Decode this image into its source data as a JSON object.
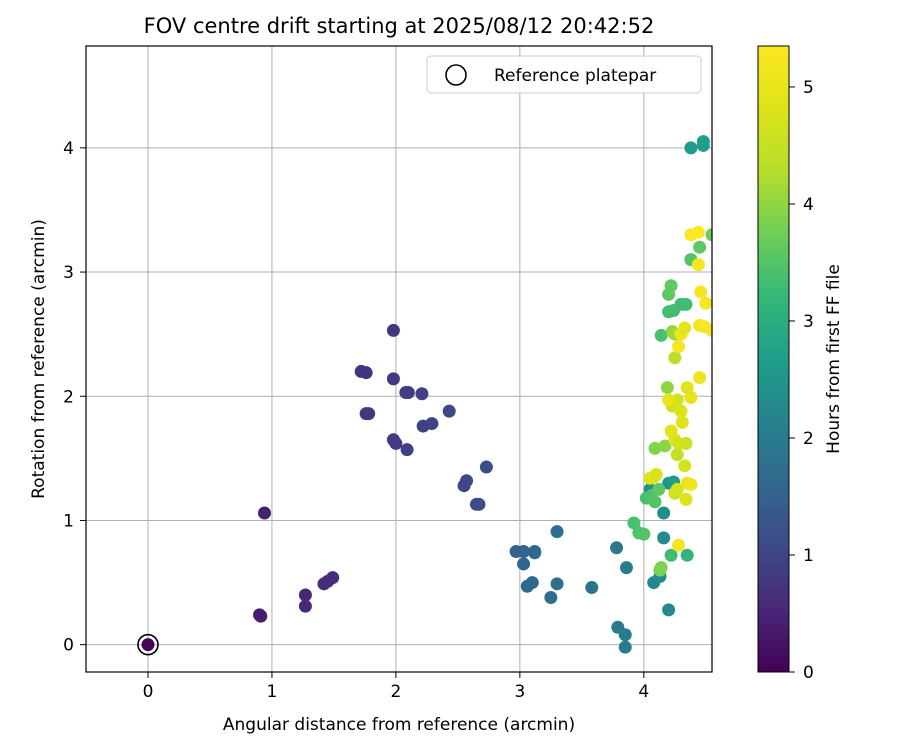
{
  "chart_data": {
    "type": "scatter",
    "title": "FOV centre drift starting at 2025/08/12 20:42:52",
    "xlabel": "Angular distance from reference (arcmin)",
    "ylabel": "Rotation from reference (arcmin)",
    "xlim": [
      -0.5,
      4.55
    ],
    "ylim": [
      -0.22,
      4.82
    ],
    "xticks": [
      0,
      1,
      2,
      3,
      4
    ],
    "yticks": [
      0,
      1,
      2,
      3,
      4
    ],
    "grid": true,
    "legend": {
      "placement": "top-right",
      "entries": [
        "Reference platepar"
      ]
    },
    "reference_point": {
      "x": 0,
      "y": 0,
      "label": "Reference platepar"
    },
    "colorbar": {
      "label": "Hours from first FF file",
      "range": [
        0,
        5.35
      ],
      "ticks": [
        0,
        1,
        2,
        3,
        4,
        5
      ],
      "colormap": "viridis"
    },
    "points": [
      {
        "x": 0.0,
        "y": 0.0,
        "c": 0.05
      },
      {
        "x": 0.9,
        "y": 0.24,
        "c": 0.4
      },
      {
        "x": 0.91,
        "y": 0.23,
        "c": 0.4
      },
      {
        "x": 0.94,
        "y": 1.06,
        "c": 0.45
      },
      {
        "x": 1.27,
        "y": 0.4,
        "c": 0.55
      },
      {
        "x": 1.27,
        "y": 0.31,
        "c": 0.55
      },
      {
        "x": 1.42,
        "y": 0.49,
        "c": 0.6
      },
      {
        "x": 1.45,
        "y": 0.51,
        "c": 0.6
      },
      {
        "x": 1.49,
        "y": 0.54,
        "c": 0.62
      },
      {
        "x": 1.72,
        "y": 2.2,
        "c": 0.75
      },
      {
        "x": 1.76,
        "y": 2.19,
        "c": 0.75
      },
      {
        "x": 1.76,
        "y": 1.86,
        "c": 0.78
      },
      {
        "x": 1.78,
        "y": 1.86,
        "c": 0.78
      },
      {
        "x": 1.98,
        "y": 2.53,
        "c": 0.8
      },
      {
        "x": 1.98,
        "y": 2.14,
        "c": 0.82
      },
      {
        "x": 1.98,
        "y": 1.65,
        "c": 0.85
      },
      {
        "x": 2.0,
        "y": 1.62,
        "c": 0.85
      },
      {
        "x": 2.08,
        "y": 2.03,
        "c": 0.88
      },
      {
        "x": 2.1,
        "y": 2.03,
        "c": 0.88
      },
      {
        "x": 2.09,
        "y": 1.57,
        "c": 0.9
      },
      {
        "x": 2.21,
        "y": 2.02,
        "c": 0.92
      },
      {
        "x": 2.22,
        "y": 1.76,
        "c": 0.95
      },
      {
        "x": 2.29,
        "y": 1.78,
        "c": 0.95
      },
      {
        "x": 2.43,
        "y": 1.88,
        "c": 1.0
      },
      {
        "x": 2.55,
        "y": 1.28,
        "c": 1.05
      },
      {
        "x": 2.57,
        "y": 1.32,
        "c": 1.05
      },
      {
        "x": 2.65,
        "y": 1.13,
        "c": 1.1
      },
      {
        "x": 2.67,
        "y": 1.13,
        "c": 1.1
      },
      {
        "x": 2.73,
        "y": 1.43,
        "c": 1.15
      },
      {
        "x": 2.97,
        "y": 0.75,
        "c": 1.5
      },
      {
        "x": 3.03,
        "y": 0.75,
        "c": 1.5
      },
      {
        "x": 3.03,
        "y": 0.65,
        "c": 1.55
      },
      {
        "x": 3.06,
        "y": 0.47,
        "c": 1.6
      },
      {
        "x": 3.1,
        "y": 0.5,
        "c": 1.6
      },
      {
        "x": 3.12,
        "y": 0.75,
        "c": 1.6
      },
      {
        "x": 3.12,
        "y": 0.74,
        "c": 1.6
      },
      {
        "x": 3.25,
        "y": 0.38,
        "c": 1.7
      },
      {
        "x": 3.3,
        "y": 0.49,
        "c": 1.75
      },
      {
        "x": 3.3,
        "y": 0.91,
        "c": 1.75
      },
      {
        "x": 3.58,
        "y": 0.46,
        "c": 1.85
      },
      {
        "x": 3.78,
        "y": 0.78,
        "c": 1.95
      },
      {
        "x": 3.79,
        "y": 0.14,
        "c": 1.95
      },
      {
        "x": 3.85,
        "y": 0.08,
        "c": 2.0
      },
      {
        "x": 3.85,
        "y": -0.02,
        "c": 2.0
      },
      {
        "x": 3.86,
        "y": 0.62,
        "c": 2.0
      },
      {
        "x": 4.08,
        "y": 0.5,
        "c": 2.2
      },
      {
        "x": 4.13,
        "y": 0.55,
        "c": 2.3
      },
      {
        "x": 4.16,
        "y": 0.86,
        "c": 2.3
      },
      {
        "x": 4.2,
        "y": 0.28,
        "c": 2.3
      },
      {
        "x": 4.16,
        "y": 1.06,
        "c": 2.35
      },
      {
        "x": 4.05,
        "y": 1.25,
        "c": 2.4
      },
      {
        "x": 4.2,
        "y": 1.3,
        "c": 2.5
      },
      {
        "x": 4.24,
        "y": 1.31,
        "c": 2.6
      },
      {
        "x": 4.35,
        "y": 0.72,
        "c": 3.15
      },
      {
        "x": 4.22,
        "y": 0.72,
        "c": 3.3
      },
      {
        "x": 3.92,
        "y": 0.98,
        "c": 3.4
      },
      {
        "x": 3.96,
        "y": 0.9,
        "c": 3.45
      },
      {
        "x": 4.0,
        "y": 0.89,
        "c": 3.5
      },
      {
        "x": 4.02,
        "y": 1.18,
        "c": 3.4
      },
      {
        "x": 4.06,
        "y": 1.2,
        "c": 3.45
      },
      {
        "x": 4.09,
        "y": 1.15,
        "c": 3.5
      },
      {
        "x": 4.12,
        "y": 1.25,
        "c": 3.6
      },
      {
        "x": 4.14,
        "y": 0.62,
        "c": 3.8
      },
      {
        "x": 4.13,
        "y": 0.6,
        "c": 3.85
      },
      {
        "x": 4.09,
        "y": 1.58,
        "c": 3.9
      },
      {
        "x": 4.17,
        "y": 1.6,
        "c": 3.95
      },
      {
        "x": 4.14,
        "y": 2.49,
        "c": 3.4
      },
      {
        "x": 4.2,
        "y": 2.68,
        "c": 3.35
      },
      {
        "x": 4.24,
        "y": 2.69,
        "c": 3.35
      },
      {
        "x": 4.3,
        "y": 2.74,
        "c": 3.3
      },
      {
        "x": 4.34,
        "y": 2.74,
        "c": 3.3
      },
      {
        "x": 4.2,
        "y": 2.82,
        "c": 3.6
      },
      {
        "x": 4.22,
        "y": 2.89,
        "c": 3.6
      },
      {
        "x": 4.23,
        "y": 2.52,
        "c": 4.0
      },
      {
        "x": 4.25,
        "y": 2.5,
        "c": 4.1
      },
      {
        "x": 4.25,
        "y": 2.31,
        "c": 4.35
      },
      {
        "x": 4.19,
        "y": 2.07,
        "c": 4.0
      },
      {
        "x": 4.23,
        "y": 1.92,
        "c": 4.6
      },
      {
        "x": 4.27,
        "y": 1.97,
        "c": 4.7
      },
      {
        "x": 4.3,
        "y": 1.88,
        "c": 4.8
      },
      {
        "x": 4.31,
        "y": 1.79,
        "c": 4.8
      },
      {
        "x": 4.35,
        "y": 2.07,
        "c": 4.9
      },
      {
        "x": 4.38,
        "y": 1.99,
        "c": 5.0
      },
      {
        "x": 4.45,
        "y": 2.15,
        "c": 5.1
      },
      {
        "x": 4.2,
        "y": 1.97,
        "c": 5.0
      },
      {
        "x": 4.22,
        "y": 1.72,
        "c": 4.9
      },
      {
        "x": 4.25,
        "y": 1.65,
        "c": 4.8
      },
      {
        "x": 4.28,
        "y": 1.62,
        "c": 4.7
      },
      {
        "x": 4.34,
        "y": 1.62,
        "c": 4.6
      },
      {
        "x": 4.27,
        "y": 1.53,
        "c": 4.5
      },
      {
        "x": 4.33,
        "y": 1.44,
        "c": 4.7
      },
      {
        "x": 4.05,
        "y": 1.34,
        "c": 4.8
      },
      {
        "x": 4.08,
        "y": 1.35,
        "c": 4.9
      },
      {
        "x": 4.1,
        "y": 1.37,
        "c": 4.75
      },
      {
        "x": 4.35,
        "y": 1.3,
        "c": 5.0
      },
      {
        "x": 4.38,
        "y": 1.29,
        "c": 5.1
      },
      {
        "x": 4.25,
        "y": 1.22,
        "c": 4.6
      },
      {
        "x": 4.27,
        "y": 1.25,
        "c": 4.7
      },
      {
        "x": 4.34,
        "y": 1.17,
        "c": 4.8
      },
      {
        "x": 4.28,
        "y": 0.8,
        "c": 5.2
      },
      {
        "x": 4.28,
        "y": 2.4,
        "c": 5.2
      },
      {
        "x": 4.3,
        "y": 2.5,
        "c": 5.1
      },
      {
        "x": 4.33,
        "y": 2.55,
        "c": 5.0
      },
      {
        "x": 4.38,
        "y": 3.1,
        "c": 3.5
      },
      {
        "x": 4.45,
        "y": 3.2,
        "c": 3.6
      },
      {
        "x": 4.55,
        "y": 3.3,
        "c": 3.7
      },
      {
        "x": 4.38,
        "y": 3.3,
        "c": 5.3
      },
      {
        "x": 4.44,
        "y": 3.32,
        "c": 5.3
      },
      {
        "x": 4.44,
        "y": 3.06,
        "c": 5.2
      },
      {
        "x": 4.46,
        "y": 2.84,
        "c": 5.2
      },
      {
        "x": 4.5,
        "y": 2.75,
        "c": 5.25
      },
      {
        "x": 4.45,
        "y": 2.57,
        "c": 5.2
      },
      {
        "x": 4.49,
        "y": 2.56,
        "c": 5.25
      },
      {
        "x": 4.55,
        "y": 2.53,
        "c": 5.25
      },
      {
        "x": 4.38,
        "y": 4.0,
        "c": 2.6
      },
      {
        "x": 4.48,
        "y": 4.02,
        "c": 2.65
      },
      {
        "x": 4.48,
        "y": 4.05,
        "c": 2.7
      }
    ]
  }
}
